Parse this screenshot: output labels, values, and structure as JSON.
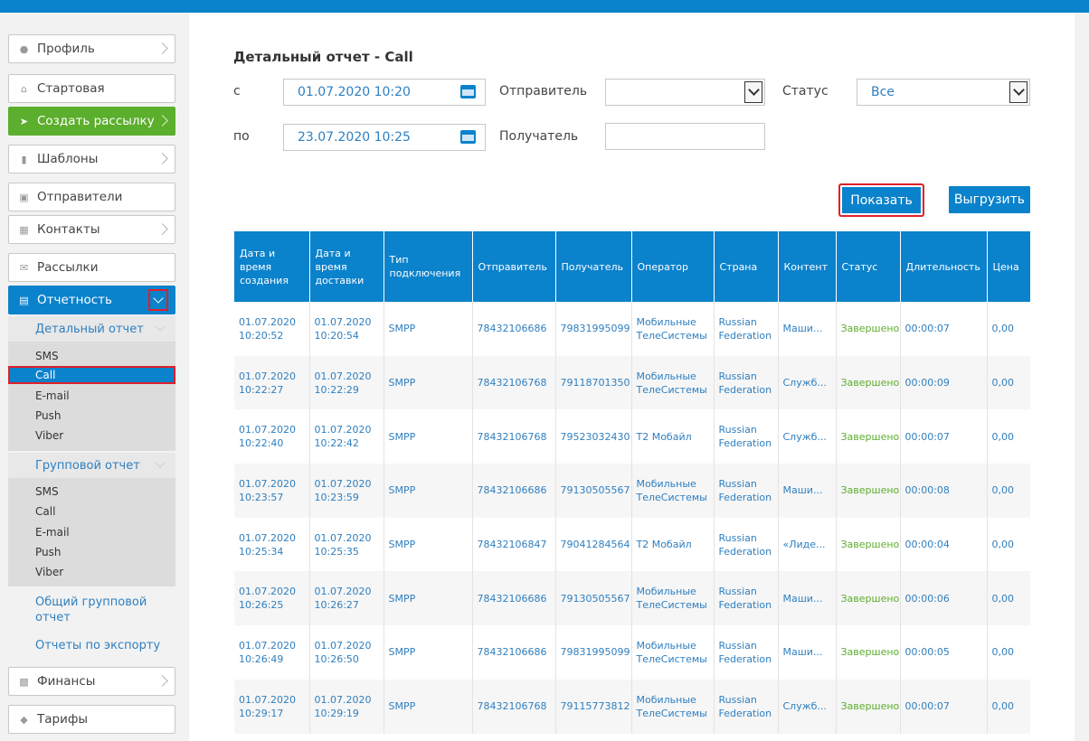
{
  "sidebar": {
    "profile": "Профиль",
    "start": "Стартовая",
    "create_mailing": "Создать рассылку",
    "templates": "Шаблоны",
    "senders": "Отправители",
    "contacts": "Контакты",
    "mailings": "Рассылки",
    "reports": "Отчетность",
    "detailed_report": "Детальный отчет",
    "detailed_items": [
      "SMS",
      "Call",
      "E-mail",
      "Push",
      "Viber"
    ],
    "group_report": "Групповой отчет",
    "group_items": [
      "SMS",
      "Call",
      "E-mail",
      "Push",
      "Viber"
    ],
    "general_group_report_1": "Общий групповой",
    "general_group_report_2": "отчет",
    "export_reports": "Отчеты по экспорту",
    "finances": "Финансы",
    "tariffs": "Тарифы"
  },
  "main": {
    "title": "Детальный отчет - Call",
    "from_label": "с",
    "from_value": "01.07.2020 10:20",
    "to_label": "по",
    "to_value": "23.07.2020 10:25",
    "sender_label": "Отправитель",
    "sender_value": "",
    "recipient_label": "Получатель",
    "recipient_value": "",
    "status_label": "Статус",
    "status_value": "Все",
    "show_button": "Показать",
    "export_button": "Выгрузить"
  },
  "table": {
    "headers": [
      "Дата и время создания",
      "Дата и время доставки",
      "Тип подключения",
      "Отправитель",
      "Получатель",
      "Оператор",
      "Страна",
      "Контент",
      "Статус",
      "Длительность",
      "Цена"
    ],
    "rows": [
      [
        "01.07.2020 10:20:52",
        "01.07.2020 10:20:54",
        "SMPP",
        "78432106686",
        "79831995099",
        "Мобильные ТелеСистемы",
        "Russian Federation",
        "Маши...",
        "Завершено",
        "00:00:07",
        "0,00"
      ],
      [
        "01.07.2020 10:22:27",
        "01.07.2020 10:22:29",
        "SMPP",
        "78432106768",
        "79118701350",
        "Мобильные ТелеСистемы",
        "Russian Federation",
        "Служб...",
        "Завершено",
        "00:00:09",
        "0,00"
      ],
      [
        "01.07.2020 10:22:40",
        "01.07.2020 10:22:42",
        "SMPP",
        "78432106768",
        "79523032430",
        "T2 Мобайл",
        "Russian Federation",
        "Служб...",
        "Завершено",
        "00:00:07",
        "0,00"
      ],
      [
        "01.07.2020 10:23:57",
        "01.07.2020 10:23:59",
        "SMPP",
        "78432106686",
        "79130505567",
        "Мобильные ТелеСистемы",
        "Russian Federation",
        "Маши...",
        "Завершено",
        "00:00:08",
        "0,00"
      ],
      [
        "01.07.2020 10:25:34",
        "01.07.2020 10:25:35",
        "SMPP",
        "78432106847",
        "79041284564",
        "T2 Мобайл",
        "Russian Federation",
        "«Лиде...",
        "Завершено",
        "00:00:04",
        "0,00"
      ],
      [
        "01.07.2020 10:26:25",
        "01.07.2020 10:26:27",
        "SMPP",
        "78432106686",
        "79130505567",
        "Мобильные ТелеСистемы",
        "Russian Federation",
        "Маши...",
        "Завершено",
        "00:00:06",
        "0,00"
      ],
      [
        "01.07.2020 10:26:49",
        "01.07.2020 10:26:50",
        "SMPP",
        "78432106686",
        "79831995099",
        "Мобильные ТелеСистемы",
        "Russian Federation",
        "Маши...",
        "Завершено",
        "00:00:05",
        "0,00"
      ],
      [
        "01.07.2020 10:29:17",
        "01.07.2020 10:29:19",
        "SMPP",
        "78432106768",
        "79115773812",
        "Мобильные ТелеСистемы",
        "Russian Federation",
        "Служб...",
        "Завершено",
        "00:00:07",
        "0,00"
      ]
    ]
  },
  "colors": {
    "accent_blue": "#0a82cc",
    "accent_green": "#5cae2d",
    "highlight_red": "#e0202a"
  }
}
